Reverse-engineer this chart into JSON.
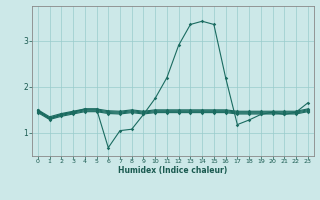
{
  "xlabel": "Humidex (Indice chaleur)",
  "background_color": "#cce8e8",
  "grid_color": "#99cccc",
  "line_color": "#1a6b60",
  "xlim": [
    -0.5,
    23.5
  ],
  "ylim": [
    0.5,
    3.75
  ],
  "yticks": [
    1,
    2,
    3
  ],
  "xticks": [
    0,
    1,
    2,
    3,
    4,
    5,
    6,
    7,
    8,
    9,
    10,
    11,
    12,
    13,
    14,
    15,
    16,
    17,
    18,
    19,
    20,
    21,
    22,
    23
  ],
  "series": [
    [
      1.5,
      1.3,
      1.4,
      1.45,
      1.52,
      1.52,
      0.68,
      1.05,
      1.08,
      1.4,
      1.75,
      2.2,
      2.9,
      3.35,
      3.42,
      3.35,
      2.2,
      1.18,
      1.28,
      1.4,
      1.45,
      1.4,
      1.45,
      1.65
    ],
    [
      1.5,
      1.35,
      1.42,
      1.47,
      1.52,
      1.52,
      1.48,
      1.47,
      1.5,
      1.47,
      1.5,
      1.5,
      1.5,
      1.5,
      1.5,
      1.5,
      1.5,
      1.47,
      1.47,
      1.47,
      1.47,
      1.47,
      1.47,
      1.52
    ],
    [
      1.48,
      1.33,
      1.4,
      1.45,
      1.5,
      1.5,
      1.46,
      1.45,
      1.48,
      1.45,
      1.48,
      1.48,
      1.48,
      1.48,
      1.48,
      1.48,
      1.48,
      1.45,
      1.45,
      1.45,
      1.45,
      1.45,
      1.45,
      1.5
    ],
    [
      1.46,
      1.31,
      1.38,
      1.43,
      1.48,
      1.48,
      1.44,
      1.43,
      1.46,
      1.43,
      1.46,
      1.46,
      1.46,
      1.46,
      1.46,
      1.46,
      1.46,
      1.43,
      1.43,
      1.43,
      1.43,
      1.43,
      1.43,
      1.48
    ],
    [
      1.44,
      1.29,
      1.36,
      1.41,
      1.46,
      1.46,
      1.42,
      1.41,
      1.44,
      1.41,
      1.44,
      1.44,
      1.44,
      1.44,
      1.44,
      1.44,
      1.44,
      1.41,
      1.41,
      1.41,
      1.41,
      1.41,
      1.41,
      1.46
    ]
  ],
  "marker": "D",
  "markersize": 1.8,
  "linewidth": 0.8
}
